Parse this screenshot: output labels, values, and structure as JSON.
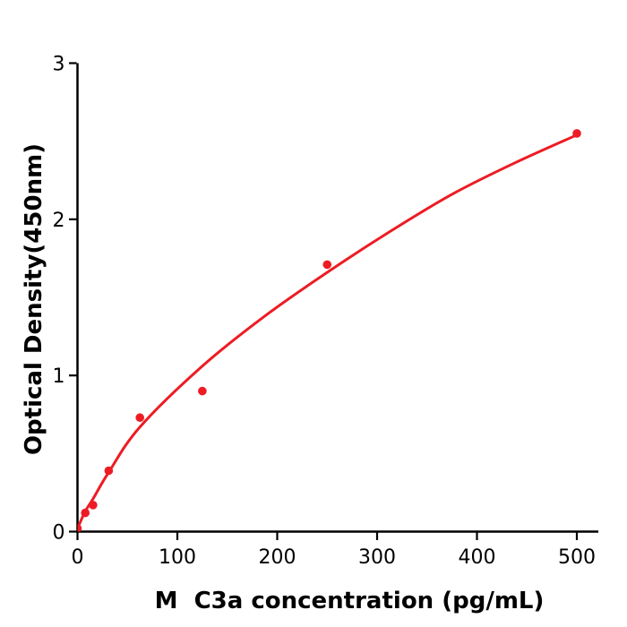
{
  "figure": {
    "background_color": "#ffffff"
  },
  "chart_data": {
    "type": "scatter",
    "title": "",
    "xlabel": "M  C3a concentration (pg/mL)",
    "ylabel": "Optical Density(450nm)",
    "x_tick_labels": [
      "0",
      "100",
      "200",
      "300",
      "400",
      "500"
    ],
    "x_tick_values": [
      0,
      100,
      200,
      300,
      400,
      500
    ],
    "y_tick_labels": [
      "0",
      "1",
      "2",
      "3"
    ],
    "y_tick_values": [
      0,
      1,
      2,
      3
    ],
    "xlim": [
      0,
      522
    ],
    "ylim": [
      0,
      3
    ],
    "grid": false,
    "legend_position": "none",
    "axis_color": "#000000",
    "series": [
      {
        "name": "standard-data-points",
        "kind": "scatter",
        "x": [
          0,
          7.8,
          15.6,
          31.25,
          62.5,
          125,
          250,
          500
        ],
        "y": [
          0.02,
          0.12,
          0.17,
          0.39,
          0.73,
          0.9,
          1.71,
          2.55
        ],
        "color": "#ed1c24",
        "marker": "circle",
        "marker_radius": 4.8
      },
      {
        "name": "fitted-curve",
        "kind": "line",
        "x": [
          0,
          7.8,
          15.6,
          31.25,
          62.5,
          125,
          187.5,
          250,
          312.5,
          375,
          437.5,
          500
        ],
        "y": [
          0.02,
          0.13,
          0.21,
          0.38,
          0.67,
          1.06,
          1.38,
          1.66,
          1.92,
          2.16,
          2.36,
          2.54
        ],
        "color": "#ed1c24",
        "line_width": 3
      }
    ]
  }
}
